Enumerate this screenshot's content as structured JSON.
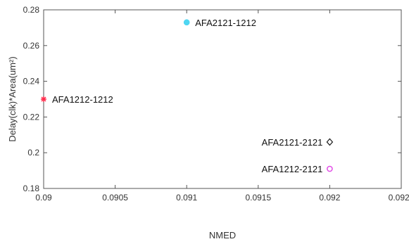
{
  "chart_data": {
    "type": "scatter",
    "title": "",
    "xlabel": "NMED",
    "ylabel": "Delay(clk)*Area(um²)",
    "xlim": [
      0.09,
      0.0925
    ],
    "ylim": [
      0.18,
      0.28
    ],
    "x_ticks": [
      0.09,
      0.0905,
      0.091,
      0.0915,
      0.092,
      0.0925
    ],
    "y_ticks": [
      0.18,
      0.2,
      0.22,
      0.24,
      0.26,
      0.28
    ],
    "x_tick_labels": [
      "0.09",
      "0.0905",
      "0.091",
      "0.0915",
      "0.092",
      "0.0925"
    ],
    "y_tick_labels": [
      "0.18",
      "0.2",
      "0.22",
      "0.24",
      "0.26",
      "0.28"
    ],
    "grid": false,
    "points": [
      {
        "label": "AFA1212-1212",
        "x": 0.09,
        "y": 0.23,
        "marker": "asterisk",
        "color": "#ff2a4a"
      },
      {
        "label": "AFA2121-1212",
        "x": 0.091,
        "y": 0.273,
        "marker": "circle",
        "color": "#4fd6f2"
      },
      {
        "label": "AFA2121-2121",
        "x": 0.092,
        "y": 0.206,
        "marker": "diamond",
        "color": "#222222"
      },
      {
        "label": "AFA1212-2121",
        "x": 0.092,
        "y": 0.191,
        "marker": "circle",
        "color": "#e14ce6"
      }
    ]
  }
}
